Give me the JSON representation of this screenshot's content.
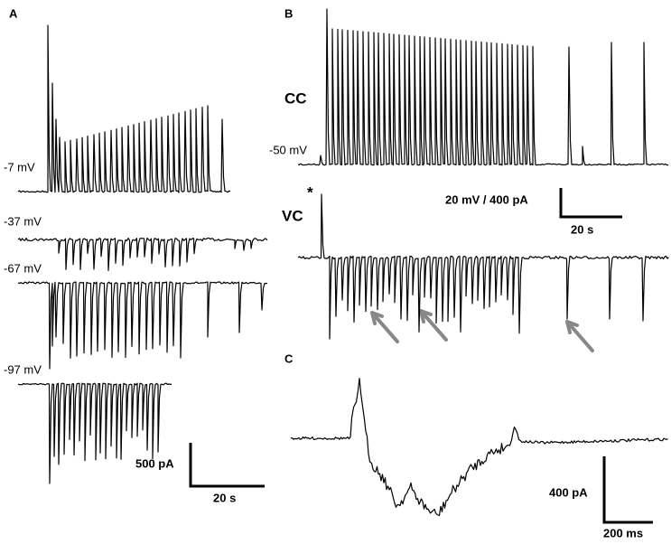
{
  "panel_a": {
    "label": "A",
    "holding_potentials": [
      "-7 mV",
      "-37 mV",
      "-67 mV",
      "-97 mV"
    ],
    "scale_bar": {
      "vertical": "500 pA",
      "horizontal": "20 s"
    }
  },
  "panel_b": {
    "label": "B",
    "cc_label": "CC",
    "cc_potential": "-50 mV",
    "vc_label": "VC",
    "marker": "*",
    "scale_bar": {
      "vertical": "20 mV / 400 pA",
      "horizontal": "20 s"
    }
  },
  "panel_c": {
    "label": "C",
    "scale_bar": {
      "vertical": "400 pA",
      "horizontal": "200 ms"
    }
  }
}
